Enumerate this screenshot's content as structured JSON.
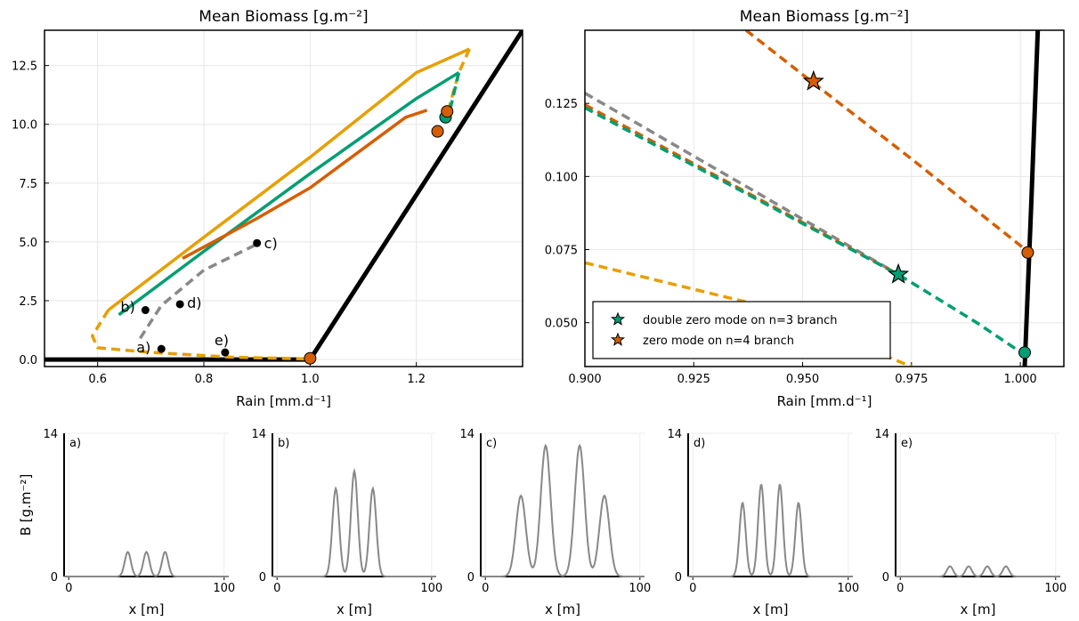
{
  "chart_data": [
    {
      "type": "line",
      "title": "Mean Biomass [g.m⁻²]",
      "xlabel": "Rain [mm.d⁻¹]",
      "ylabel": "",
      "xlim": [
        0.5,
        1.4
      ],
      "ylim": [
        -0.3,
        14.0
      ],
      "xticks": [
        "0.6",
        "0.8",
        "1.0",
        "1.2"
      ],
      "yticks": [
        "0.0",
        "2.5",
        "5.0",
        "7.5",
        "10.0",
        "12.5"
      ],
      "grid": true,
      "series": [
        {
          "color": "#000000",
          "style": "solid",
          "x": [
            0.5,
            1.0,
            1.4
          ],
          "y": [
            0,
            0,
            14.0
          ]
        },
        {
          "color": "#E69F00",
          "style": "solid",
          "x": [
            0.62,
            0.8,
            1.0,
            1.2,
            1.3
          ],
          "y": [
            2.1,
            5.2,
            8.6,
            12.2,
            13.2
          ]
        },
        {
          "color": "#E69F00",
          "style": "dashed",
          "x": [
            1.3,
            1.28,
            1.26
          ],
          "y": [
            13.2,
            12.2,
            10.6
          ]
        },
        {
          "color": "#E69F00",
          "style": "dashed",
          "x": [
            0.62,
            0.59,
            0.6,
            0.7,
            0.85,
            1.0
          ],
          "y": [
            2.1,
            1.0,
            0.5,
            0.3,
            0.1,
            0.02
          ]
        },
        {
          "color": "#009E73",
          "style": "solid",
          "x": [
            0.64,
            0.8,
            1.0,
            1.2,
            1.28
          ],
          "y": [
            1.9,
            4.6,
            7.9,
            11.1,
            12.2
          ]
        },
        {
          "color": "#009E73",
          "style": "dashed",
          "x": [
            1.28,
            1.26
          ],
          "y": [
            12.2,
            10.3
          ]
        },
        {
          "color": "#D55E00",
          "style": "solid",
          "x": [
            0.76,
            0.9,
            1.0,
            1.18,
            1.22
          ],
          "y": [
            4.3,
            6.0,
            7.3,
            10.3,
            10.6
          ]
        },
        {
          "color": "#888888",
          "style": "dashed",
          "x": [
            0.68,
            0.72,
            0.8,
            0.9
          ],
          "y": [
            0.9,
            2.3,
            3.8,
            4.9
          ]
        }
      ],
      "markers": [
        {
          "color": "#D55E00",
          "shape": "circle",
          "x": 1.0,
          "y": 0.05
        },
        {
          "color": "#D55E00",
          "shape": "circle",
          "x": 1.24,
          "y": 9.7
        },
        {
          "color": "#009E73",
          "shape": "circle",
          "x": 1.255,
          "y": 10.3
        },
        {
          "color": "#D55E00",
          "shape": "circle",
          "x": 1.258,
          "y": 10.55
        }
      ],
      "points": [
        {
          "label": "a)",
          "x": 0.72,
          "y": 0.45
        },
        {
          "label": "b)",
          "x": 0.69,
          "y": 2.1
        },
        {
          "label": "c)",
          "x": 0.9,
          "y": 4.95
        },
        {
          "label": "d)",
          "x": 0.755,
          "y": 2.35
        },
        {
          "label": "e)",
          "x": 0.84,
          "y": 0.3
        }
      ]
    },
    {
      "type": "line",
      "title": "Mean Biomass [g.m⁻²]",
      "xlabel": "Rain [mm.d⁻¹]",
      "ylabel": "",
      "xlim": [
        0.9,
        1.01
      ],
      "ylim": [
        0.035,
        0.15
      ],
      "xticks": [
        "0.900",
        "0.925",
        "0.950",
        "0.975",
        "1.000"
      ],
      "yticks": [
        "0.050",
        "0.075",
        "0.100",
        "0.125"
      ],
      "grid": true,
      "legend_position": "bottom-left",
      "legend": [
        {
          "label": "double zero mode on n=3 branch",
          "color": "#009E73",
          "shape": "star"
        },
        {
          "label": "zero mode on n=4 branch",
          "color": "#D55E00",
          "shape": "star"
        }
      ],
      "series": [
        {
          "color": "#000000",
          "style": "solid",
          "x": [
            1.001,
            1.0025,
            1.004
          ],
          "y": [
            0.035,
            0.09,
            0.15
          ]
        },
        {
          "color": "#D55E00",
          "style": "dashed",
          "x": [
            0.937,
            0.952,
            0.975,
            1.002
          ],
          "y": [
            0.15,
            0.1325,
            0.106,
            0.074
          ]
        },
        {
          "color": "#888888",
          "style": "dashed",
          "x": [
            0.9,
            0.972
          ],
          "y": [
            0.1285,
            0.0665
          ]
        },
        {
          "color": "#D55E00",
          "style": "dashed",
          "x": [
            0.9,
            0.972
          ],
          "y": [
            0.1245,
            0.0665
          ]
        },
        {
          "color": "#009E73",
          "style": "dashed",
          "x": [
            0.9,
            0.972,
            0.99,
            1.0
          ],
          "y": [
            0.1235,
            0.0665,
            0.05,
            0.04
          ]
        },
        {
          "color": "#E69F00",
          "style": "dashed",
          "x": [
            0.9,
            0.94,
            0.975
          ],
          "y": [
            0.0705,
            0.056,
            0.035
          ]
        }
      ],
      "markers": [
        {
          "color": "#D55E00",
          "shape": "star",
          "x": 0.9525,
          "y": 0.1325
        },
        {
          "color": "#009E73",
          "shape": "star",
          "x": 0.972,
          "y": 0.0665
        },
        {
          "color": "#D55E00",
          "shape": "circle",
          "x": 1.0017,
          "y": 0.074
        },
        {
          "color": "#009E73",
          "shape": "circle",
          "x": 1.001,
          "y": 0.0398
        }
      ]
    },
    {
      "type": "line",
      "panel_label": "a)",
      "xlabel": "x [m]",
      "ylabel": "B [g.m⁻²]",
      "xlim": [
        -3,
        103
      ],
      "ylim": [
        0,
        14
      ],
      "xticks": [
        "0",
        "100"
      ],
      "yticks": [
        "0",
        "14"
      ],
      "peaks": [
        {
          "center": 38,
          "height": 2.4
        },
        {
          "center": 50,
          "height": 2.4
        },
        {
          "center": 62,
          "height": 2.4
        }
      ],
      "peak_width": 2.0,
      "color": "#888888"
    },
    {
      "type": "line",
      "panel_label": "b)",
      "xlabel": "x [m]",
      "ylabel": "",
      "xlim": [
        -3,
        103
      ],
      "ylim": [
        0,
        14
      ],
      "xticks": [
        "0",
        "100"
      ],
      "yticks": [
        "14",
        "0"
      ],
      "peaks": [
        {
          "center": 38,
          "height": 8.6
        },
        {
          "center": 50,
          "height": 10.3
        },
        {
          "center": 62,
          "height": 8.6
        }
      ],
      "peak_width": 2.2,
      "color": "#888888"
    },
    {
      "type": "line",
      "panel_label": "c)",
      "xlabel": "x [m]",
      "ylabel": "",
      "xlim": [
        -3,
        103
      ],
      "ylim": [
        0,
        14
      ],
      "xticks": [
        "0",
        "100"
      ],
      "yticks": [
        "14",
        "0"
      ],
      "peaks": [
        {
          "center": 23,
          "height": 7.9
        },
        {
          "center": 39,
          "height": 12.8
        },
        {
          "center": 61,
          "height": 12.8
        },
        {
          "center": 77,
          "height": 7.9
        }
      ],
      "peak_width": 3.2,
      "color": "#888888"
    },
    {
      "type": "line",
      "panel_label": "d)",
      "xlabel": "x [m]",
      "ylabel": "",
      "xlim": [
        -3,
        103
      ],
      "ylim": [
        0,
        14
      ],
      "xticks": [
        "0",
        "100"
      ],
      "yticks": [
        "14",
        "0"
      ],
      "peaks": [
        {
          "center": 32,
          "height": 7.2
        },
        {
          "center": 44,
          "height": 9.0
        },
        {
          "center": 56,
          "height": 9.0
        },
        {
          "center": 68,
          "height": 7.2
        }
      ],
      "peak_width": 2.0,
      "color": "#888888"
    },
    {
      "type": "line",
      "panel_label": "e)",
      "xlabel": "x [m]",
      "ylabel": "",
      "xlim": [
        -3,
        103
      ],
      "ylim": [
        0,
        14
      ],
      "xticks": [
        "0",
        "100"
      ],
      "yticks": [
        "14",
        "0"
      ],
      "peaks": [
        {
          "center": 32,
          "height": 1.0
        },
        {
          "center": 44,
          "height": 1.0
        },
        {
          "center": 56,
          "height": 1.0
        },
        {
          "center": 68,
          "height": 1.0
        }
      ],
      "peak_width": 2.0,
      "color": "#888888"
    }
  ]
}
